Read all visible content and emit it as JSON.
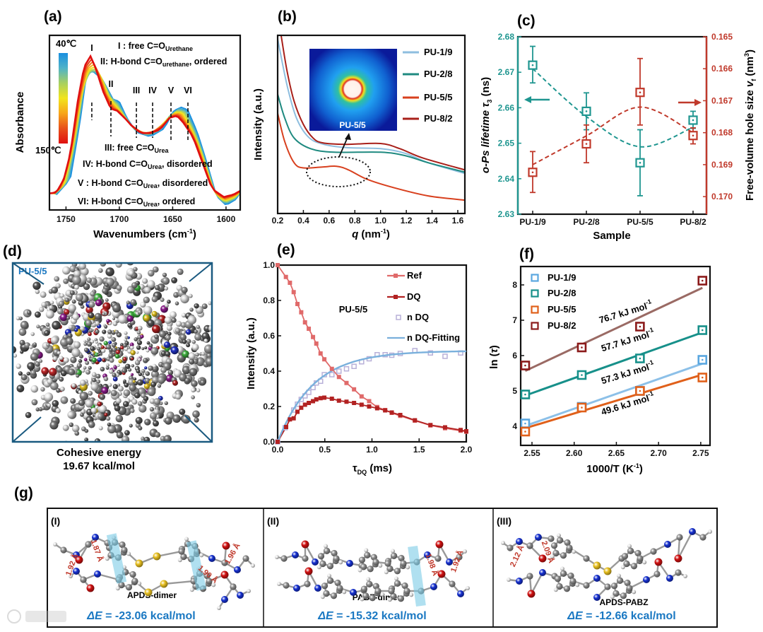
{
  "panel_labels": {
    "a": "(a)",
    "b": "(b)",
    "c": "(c)",
    "d": "(d)",
    "e": "(e)",
    "f": "(f)",
    "g": "(g)"
  },
  "chart_data": [
    {
      "type": "line",
      "panel": "a",
      "xlabel": {
        "main": "Wavenumbers (cm",
        "sup": "-1",
        "end": ")"
      },
      "ylabel": "Absorbance",
      "xlim": [
        1765.5,
        1586.7
      ],
      "ylim": [
        0,
        100
      ],
      "x_ticks": [
        "1750",
        "1700",
        "1650",
        "1600"
      ],
      "colorbar": {
        "top": "40℃",
        "bottom": "150℃",
        "colors": [
          "#1a8fe0",
          "#4fb3c8",
          "#a8d060",
          "#f2e41c",
          "#f7a51a",
          "#e8501a",
          "#e01010"
        ]
      },
      "series": [
        {
          "name": "40℃",
          "color": "#1a8fe0",
          "x": [
            1759,
            1746,
            1737,
            1731,
            1726,
            1720,
            1713,
            1706,
            1700,
            1693,
            1684,
            1671,
            1658,
            1649,
            1642,
            1636,
            1627,
            1618,
            1609,
            1600,
            1591,
            1587
          ],
          "y": [
            8.8,
            17.6,
            50,
            77,
            80,
            77,
            71.6,
            63.5,
            62,
            52.7,
            44.6,
            42,
            46.6,
            56.8,
            58.8,
            57.4,
            44.6,
            27,
            8.1,
            2.7,
            6,
            9.5
          ]
        },
        {
          "name": "150℃",
          "color": "#e01010",
          "x": [
            1765,
            1759,
            1752,
            1746,
            1739,
            1733,
            1727,
            1722,
            1715,
            1708,
            1702,
            1695,
            1689,
            1680,
            1671,
            1662,
            1653,
            1646,
            1640,
            1631,
            1622,
            1613,
            1602,
            1593,
            1587
          ],
          "y": [
            9.5,
            10,
            17.6,
            32,
            62,
            82,
            88,
            81,
            67.6,
            58,
            56.8,
            52.7,
            48.6,
            44,
            44,
            46,
            52.7,
            54,
            50,
            42,
            27,
            12,
            7.4,
            8.8,
            10.8
          ]
        }
      ],
      "peaks": [
        {
          "label": "I",
          "x": 1725.8
        },
        {
          "label": "II",
          "x": 1707.9
        },
        {
          "label": "III",
          "x": 1684
        },
        {
          "label": "IV",
          "x": 1668.8
        },
        {
          "label": "V",
          "x": 1651.6
        },
        {
          "label": "VI",
          "x": 1635.7
        }
      ],
      "annotations": [
        {
          "pre": "I : free C=O",
          "sub": "Urethane",
          "post": ""
        },
        {
          "pre": "II: H-bond C=O",
          "sub": "urethane",
          "post": ", ordered"
        },
        {
          "pre": "III: free C=O",
          "sub": "Urea",
          "post": ""
        },
        {
          "pre": "IV: H-bond C=O",
          "sub": "Urea",
          "post": ", disordered"
        },
        {
          "pre": "V : H-bond C=O",
          "sub": "Urea",
          "post": ", disordered"
        },
        {
          "pre": "VI: H-bond C=O",
          "sub": "Urea",
          "post": ", ordered"
        }
      ]
    },
    {
      "type": "line",
      "panel": "b",
      "xlabel": {
        "q": "q",
        "rest": " (nm",
        "sup": "-1",
        "end": ")"
      },
      "ylabel": "Intensity (a.u.)",
      "xlim": [
        0.2,
        1.655
      ],
      "ylim": [
        0,
        100
      ],
      "x_ticks": [
        "0.2",
        "0.4",
        "0.6",
        "0.8",
        "1.0",
        "1.2",
        "1.4",
        "1.6"
      ],
      "inset_label": "PU-5/5",
      "series": [
        {
          "name": "PU-1/9",
          "color": "#8ebedf",
          "x": [
            0.2,
            0.273,
            0.346,
            0.438,
            0.548,
            0.73,
            1.0,
            1.19,
            1.37,
            1.655
          ],
          "y": [
            98,
            72,
            53.6,
            43,
            39,
            37,
            36.4,
            33.8,
            28.5,
            22.5
          ]
        },
        {
          "name": "PU-2/8",
          "color": "#1f8a80",
          "x": [
            0.2,
            0.255,
            0.328,
            0.456,
            0.64,
            1.0,
            1.19,
            1.37,
            1.655
          ],
          "y": [
            67,
            53.6,
            42.4,
            36.4,
            34.4,
            34.4,
            32.5,
            28.5,
            23.2
          ]
        },
        {
          "name": "PU-5/5",
          "color": "#d8401e",
          "x": [
            0.2,
            0.255,
            0.328,
            0.4,
            0.548,
            0.658,
            0.75,
            0.895,
            1.097,
            1.37,
            1.655
          ],
          "y": [
            56.3,
            40.4,
            28.5,
            25.6,
            26.1,
            26.5,
            24.5,
            19.2,
            14.6,
            9.9,
            7.5
          ]
        },
        {
          "name": "PU-8/2",
          "color": "#a8201a",
          "x": [
            0.227,
            0.273,
            0.328,
            0.4,
            0.475,
            0.548,
            0.73,
            1.0,
            1.15,
            1.33,
            1.655
          ],
          "y": [
            100,
            80,
            63,
            50,
            42.4,
            39.7,
            38.8,
            39.3,
            36.4,
            31.1,
            24.5
          ]
        }
      ]
    },
    {
      "type": "scatter",
      "panel": "c",
      "categories": [
        "PU-1/9",
        "PU-2/8",
        "PU-5/5",
        "PU-8/2"
      ],
      "xlabel": "Sample",
      "ylabel_left": {
        "pre": "o-Ps lifetime ",
        "tau": "τ",
        "sub": "3",
        "post": " (ns)"
      },
      "ylabel_right": {
        "pre": "Free-volume hole size ",
        "v": "v",
        "sub": "f",
        "post": " (nm",
        "sup": "3",
        "end": ")"
      },
      "ylim_left": [
        2.63,
        2.68
      ],
      "ylim_right": [
        0.165,
        0.17055
      ],
      "left_ticks": [
        "2.63",
        "2.64",
        "2.65",
        "2.66",
        "2.67",
        "2.68"
      ],
      "right_ticks": [
        "0.165",
        "0.166",
        "0.167",
        "0.168",
        "0.169",
        "0.170"
      ],
      "series": [
        {
          "name": "o-Ps lifetime τ3",
          "axis": "left",
          "color": "#1f9690",
          "values": [
            2.672,
            2.659,
            2.6445,
            2.6565
          ],
          "err_low": [
            2.667,
            2.6538,
            2.6352,
            2.6542
          ],
          "err_high": [
            2.6773,
            2.6642,
            2.6538,
            2.659
          ],
          "trend": [
            2.671,
            2.6575,
            2.649,
            2.6545
          ]
        },
        {
          "name": "Free-volume hole size vf",
          "axis": "right",
          "color": "#c0392b",
          "values": [
            0.16924,
            0.16835,
            0.16674,
            0.16809
          ],
          "err_low": [
            0.16987,
            0.16894,
            0.16776,
            0.16835
          ],
          "err_high": [
            0.16859,
            0.16776,
            0.16568,
            0.16785
          ],
          "trend": [
            0.169,
            0.1681,
            0.1672,
            0.168
          ]
        }
      ]
    },
    {
      "type": "line",
      "panel": "e",
      "annotation": "PU-5/5",
      "xlabel": {
        "tau": "τ",
        "sub": "DQ",
        "post": " (ms)"
      },
      "ylabel": "Intensity (a.u.)",
      "xlim": [
        0,
        2.0
      ],
      "ylim": [
        0,
        1.0
      ],
      "x_ticks": [
        "0.0",
        "0.5",
        "1.0",
        "1.5",
        "2.0"
      ],
      "y_ticks": [
        "0.0",
        "0.2",
        "0.4",
        "0.6",
        "0.8",
        "1.0"
      ],
      "series": [
        {
          "name": "Ref",
          "color": "#e06a6a",
          "style": "line+filled-square",
          "x": [
            0,
            0.0875,
            0.13,
            0.17,
            0.21,
            0.25,
            0.29,
            0.33,
            0.375,
            0.41,
            0.455,
            0.495,
            0.575,
            0.65,
            0.73,
            0.81,
            0.89,
            0.97,
            1.055,
            1.14,
            1.21,
            1.3,
            1.455,
            1.62,
            1.775,
            1.94,
            2.0
          ],
          "y": [
            1.0,
            0.933,
            0.9,
            0.847,
            0.78,
            0.733,
            0.676,
            0.64,
            0.593,
            0.556,
            0.5,
            0.467,
            0.413,
            0.367,
            0.333,
            0.297,
            0.257,
            0.23,
            0.197,
            0.18,
            0.164,
            0.147,
            0.12,
            0.093,
            0.077,
            0.063,
            0.057
          ]
        },
        {
          "name": "DQ",
          "color": "#b22222",
          "style": "line+filled-square",
          "x": [
            0,
            0.09,
            0.13,
            0.17,
            0.21,
            0.25,
            0.29,
            0.33,
            0.375,
            0.41,
            0.455,
            0.495,
            0.575,
            0.65,
            0.73,
            0.81,
            0.89,
            0.97,
            1.055,
            1.14,
            1.21,
            1.3,
            1.455,
            1.62,
            1.775,
            1.94,
            2.0
          ],
          "y": [
            0,
            0.084,
            0.127,
            0.133,
            0.17,
            0.193,
            0.21,
            0.22,
            0.23,
            0.24,
            0.247,
            0.25,
            0.244,
            0.233,
            0.227,
            0.22,
            0.21,
            0.2,
            0.19,
            0.178,
            0.166,
            0.152,
            0.122,
            0.095,
            0.082,
            0.067,
            0.06
          ]
        },
        {
          "name": "n DQ",
          "color": "#b8b0d8",
          "style": "open-square",
          "x": [
            0,
            0.08,
            0.17,
            0.21,
            0.25,
            0.29,
            0.33,
            0.375,
            0.41,
            0.455,
            0.495,
            0.575,
            0.65,
            0.73,
            0.81,
            0.89,
            0.97,
            1.055,
            1.14,
            1.21,
            1.3,
            1.455,
            1.62,
            1.775,
            1.94
          ],
          "y": [
            0,
            0.08,
            0.18,
            0.213,
            0.24,
            0.26,
            0.28,
            0.307,
            0.333,
            0.343,
            0.38,
            0.38,
            0.4,
            0.413,
            0.427,
            0.453,
            0.47,
            0.493,
            0.493,
            0.49,
            0.5,
            0.516,
            0.503,
            0.484,
            0.503
          ]
        },
        {
          "name": "n DQ-Fitting",
          "color": "#7ab0dc",
          "style": "line",
          "fit": {
            "plateau": 0.515,
            "tau_ms": 0.38
          }
        }
      ]
    },
    {
      "type": "scatter",
      "panel": "f",
      "xlabel": {
        "main": "1000/T (K",
        "sup": "-1",
        "end": ")"
      },
      "ylabel": {
        "main": "ln (",
        "tau": "τ",
        "end": ")"
      },
      "xlim": [
        2.5366,
        2.761
      ],
      "ylim": [
        3.46,
        8.52
      ],
      "x_ticks": [
        "2.55",
        "2.60",
        "2.65",
        "2.70",
        "2.75"
      ],
      "y_ticks": [
        "4",
        "5",
        "6",
        "7",
        "8"
      ],
      "x": [
        2.542,
        2.609,
        2.678,
        2.752
      ],
      "series": [
        {
          "name": "PU-1/9",
          "color": "#5aa7e0",
          "line_color": "#8cc0e8",
          "y": [
            4.08,
            4.55,
            5.0,
            5.88
          ],
          "energy": "57.3 kJ mol",
          "unit_sup": "-1"
        },
        {
          "name": "PU-2/8",
          "color": "#17908a",
          "line_color": "#17908a",
          "y": [
            4.9,
            5.45,
            5.92,
            6.72
          ],
          "energy": "57.7 kJ mol",
          "unit_sup": "-1"
        },
        {
          "name": "PU-5/5",
          "color": "#e0601a",
          "line_color": "#e0601a",
          "y": [
            3.85,
            4.53,
            5.0,
            5.38
          ],
          "energy": "49.6 kJ mol",
          "unit_sup": "-1"
        },
        {
          "name": "PU-8/2",
          "color": "#8b1a1a",
          "line_color": "#9a6a64",
          "y": [
            5.72,
            6.23,
            6.82,
            8.12
          ],
          "energy": "76.7 kJ mol",
          "unit_sup": "-1"
        }
      ]
    }
  ],
  "panel_d": {
    "sample": "PU-5/5",
    "caption_line1": "Cohesive energy",
    "caption_line2": "19.67 kcal/mol"
  },
  "panel_g": {
    "subpanels": [
      {
        "numeral": "(I)",
        "name": "APDS-dimer",
        "energy_symbol": "ΔE",
        "energy_value": " = -23.06 kcal/mol",
        "distances": [
          "1.92 Å",
          "1.87 Å",
          "1.90 Å",
          "1.96 Å"
        ]
      },
      {
        "numeral": "(II)",
        "name": "PABZ-dimer",
        "energy_symbol": "ΔE",
        "energy_value": " = -15.32 kcal/mol",
        "distances": [
          "1.98 Å",
          "1.92 Å"
        ]
      },
      {
        "numeral": "(III)",
        "name": "APDS-PABZ",
        "energy_symbol": "ΔE",
        "energy_value": " = -12.66 kcal/mol",
        "distances": [
          "2.12 Å",
          "2.09 Å"
        ]
      }
    ]
  },
  "watermark": "大数跨境",
  "colors": {
    "energy_text": "#1a78c2",
    "distance_text": "#c0392b",
    "box_frame": "#1a5a80"
  }
}
